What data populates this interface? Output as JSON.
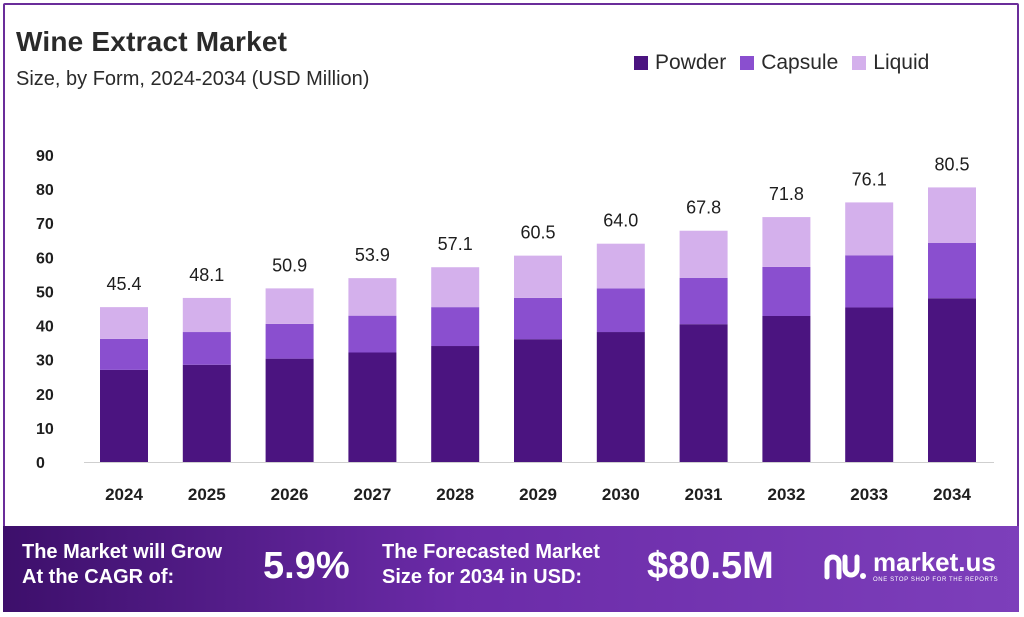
{
  "title": "Wine Extract Market",
  "subtitle": "Size, by Form, 2024-2034 (USD Million)",
  "legend": {
    "powder": "Powder",
    "capsule": "Capsule",
    "liquid": "Liquid"
  },
  "colors": {
    "powder": "#4b1480",
    "capsule": "#8a4fcf",
    "liquid": "#d4b0ec",
    "footer_start": "#3d0f6b",
    "footer_end": "#7d3fbb"
  },
  "chart_data": {
    "type": "bar",
    "stacked": true,
    "categories": [
      "2024",
      "2025",
      "2026",
      "2027",
      "2028",
      "2029",
      "2030",
      "2031",
      "2032",
      "2033",
      "2034"
    ],
    "series": [
      {
        "name": "Powder",
        "values": [
          27.0,
          28.5,
          30.3,
          32.1,
          34.0,
          36.0,
          38.1,
          40.4,
          42.8,
          45.3,
          48.0
        ]
      },
      {
        "name": "Capsule",
        "values": [
          9.1,
          9.6,
          10.2,
          10.8,
          11.4,
          12.1,
          12.8,
          13.6,
          14.4,
          15.3,
          16.2
        ]
      },
      {
        "name": "Liquid",
        "values": [
          9.3,
          10.0,
          10.4,
          11.0,
          11.7,
          12.4,
          13.1,
          13.8,
          14.6,
          15.5,
          16.3
        ]
      }
    ],
    "totals": [
      "45.4",
      "48.1",
      "50.9",
      "53.9",
      "57.1",
      "60.5",
      "64.0",
      "67.8",
      "71.8",
      "76.1",
      "80.5"
    ],
    "yticks": [
      "0",
      "10",
      "20",
      "30",
      "40",
      "50",
      "60",
      "70",
      "80",
      "90"
    ],
    "ylim": [
      0,
      90
    ],
    "grid": false,
    "legend_position": "top-right"
  },
  "footer": {
    "cagr_label_line1": "The Market will Grow",
    "cagr_label_line2": "At the CAGR of:",
    "cagr_value": "5.9%",
    "forecast_label_line1": "The Forecasted Market",
    "forecast_label_line2": "Size for 2034 in USD:",
    "forecast_value": "$80.5M",
    "brand_name": "market.us",
    "brand_tagline": "ONE STOP SHOP FOR THE REPORTS"
  }
}
